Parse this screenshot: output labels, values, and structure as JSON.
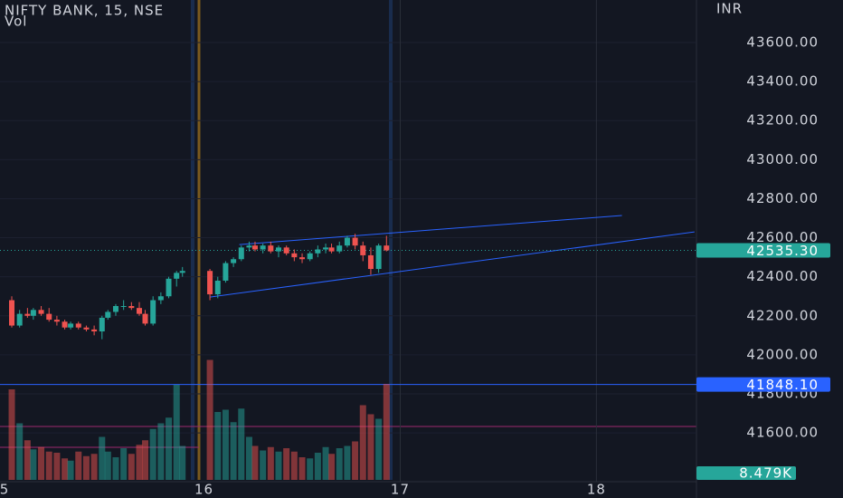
{
  "chart_data": {
    "type": "candlestick",
    "title": "NIFTY BANK, 15, NSE",
    "subtitle": "Vol",
    "currency": "INR",
    "up_color": "#26a69a",
    "down_color": "#ef5350",
    "x": [
      15.02,
      15.06,
      15.1,
      15.13,
      15.17,
      15.21,
      15.25,
      15.29,
      15.32,
      15.36,
      15.4,
      15.44,
      15.48,
      15.51,
      15.55,
      15.59,
      15.63,
      15.67,
      15.7,
      15.74,
      15.78,
      15.82,
      15.86,
      15.89,
      16.03,
      16.07,
      16.11,
      16.15,
      16.19,
      16.23,
      16.26,
      16.3,
      16.34,
      16.38,
      16.42,
      16.46,
      16.5,
      16.54,
      16.58,
      16.62,
      16.65,
      16.69,
      16.73,
      16.77,
      16.81,
      16.85,
      16.89,
      16.93
    ],
    "open": [
      42280,
      42150,
      42210,
      42200,
      42230,
      42210,
      42180,
      42170,
      42140,
      42160,
      42140,
      42130,
      42120,
      42190,
      42220,
      42250,
      42250,
      42240,
      42210,
      42160,
      42280,
      42300,
      42390,
      42420,
      42430,
      42310,
      42380,
      42470,
      42490,
      42550,
      42560,
      42540,
      42560,
      42530,
      42550,
      42520,
      42500,
      42490,
      42520,
      42540,
      42550,
      42530,
      42560,
      42600,
      42560,
      42510,
      42440,
      42560
    ],
    "high": [
      42300,
      42230,
      42240,
      42240,
      42250,
      42240,
      42200,
      42180,
      42170,
      42170,
      42150,
      42150,
      42200,
      42230,
      42260,
      42280,
      42270,
      42270,
      42230,
      42300,
      42320,
      42400,
      42430,
      42450,
      42440,
      42400,
      42480,
      42500,
      42560,
      42580,
      42580,
      42570,
      42580,
      42560,
      42560,
      42540,
      42520,
      42530,
      42560,
      42570,
      42570,
      42580,
      42610,
      42620,
      42580,
      42550,
      42570,
      42610
    ],
    "low": [
      42140,
      42140,
      42190,
      42180,
      42200,
      42170,
      42150,
      42130,
      42130,
      42130,
      42120,
      42100,
      42080,
      42180,
      42200,
      42230,
      42230,
      42200,
      42150,
      42150,
      42260,
      42290,
      42350,
      42400,
      42280,
      42290,
      42370,
      42450,
      42480,
      42530,
      42530,
      42520,
      42520,
      42500,
      42510,
      42480,
      42470,
      42480,
      42500,
      42520,
      42520,
      42520,
      42550,
      42540,
      42480,
      42410,
      42420,
      42530
    ],
    "close": [
      42150,
      42210,
      42200,
      42230,
      42210,
      42180,
      42170,
      42140,
      42160,
      42140,
      42130,
      42120,
      42190,
      42220,
      42250,
      42250,
      42240,
      42210,
      42160,
      42280,
      42300,
      42390,
      42420,
      42430,
      42310,
      42380,
      42470,
      42490,
      42550,
      42560,
      42540,
      42560,
      42530,
      42550,
      42520,
      42500,
      42490,
      42520,
      42540,
      42550,
      42530,
      42560,
      42600,
      42560,
      42510,
      42440,
      42560,
      42535.3
    ],
    "volume": [
      8000,
      5000,
      3500,
      2700,
      2900,
      2500,
      2400,
      1900,
      1700,
      2500,
      2100,
      2300,
      3800,
      2500,
      2000,
      2800,
      2300,
      3100,
      3500,
      4500,
      5000,
      5500,
      8400,
      3000,
      10600,
      6000,
      6200,
      5100,
      6300,
      3800,
      3000,
      2600,
      2900,
      2500,
      2800,
      2500,
      2000,
      1900,
      2400,
      2900,
      2300,
      2800,
      3000,
      3400,
      6600,
      5800,
      5400,
      8479
    ],
    "last_volume_label": "8.479K",
    "volume_ylim": [
      0,
      14000
    ],
    "xlim": [
      14.96,
      18.51
    ],
    "xticks": [
      {
        "value": 15,
        "label": "5"
      },
      16,
      17,
      18
    ],
    "ylim": [
      41350,
      43818
    ],
    "yticks": [
      {
        "value": 41600,
        "label": "41600.00"
      },
      {
        "value": 41800,
        "label": "41800.00"
      },
      {
        "value": 42000,
        "label": "42000.00"
      },
      {
        "value": 42200,
        "label": "42200.00"
      },
      {
        "value": 42400,
        "label": "42400.00"
      },
      {
        "value": 42600,
        "label": "42600.00"
      },
      {
        "value": 42800,
        "label": "42800.00"
      },
      {
        "value": 43000,
        "label": "43000.00"
      },
      {
        "value": 43200,
        "label": "43200.00"
      },
      {
        "value": 43400,
        "label": "43400.00"
      },
      {
        "value": 43600,
        "label": "43600.00"
      }
    ],
    "last_price": {
      "value": 42535.3,
      "label": "42535.30"
    },
    "horizontal_line": {
      "value": 41848.1,
      "label": "41848.10"
    },
    "trendlines": [
      {
        "x": [
          16.18,
          18.13
        ],
        "y": [
          42565,
          42714
        ]
      },
      {
        "x": [
          16.03,
          18.5
        ],
        "y": [
          42296,
          42630
        ]
      }
    ]
  }
}
